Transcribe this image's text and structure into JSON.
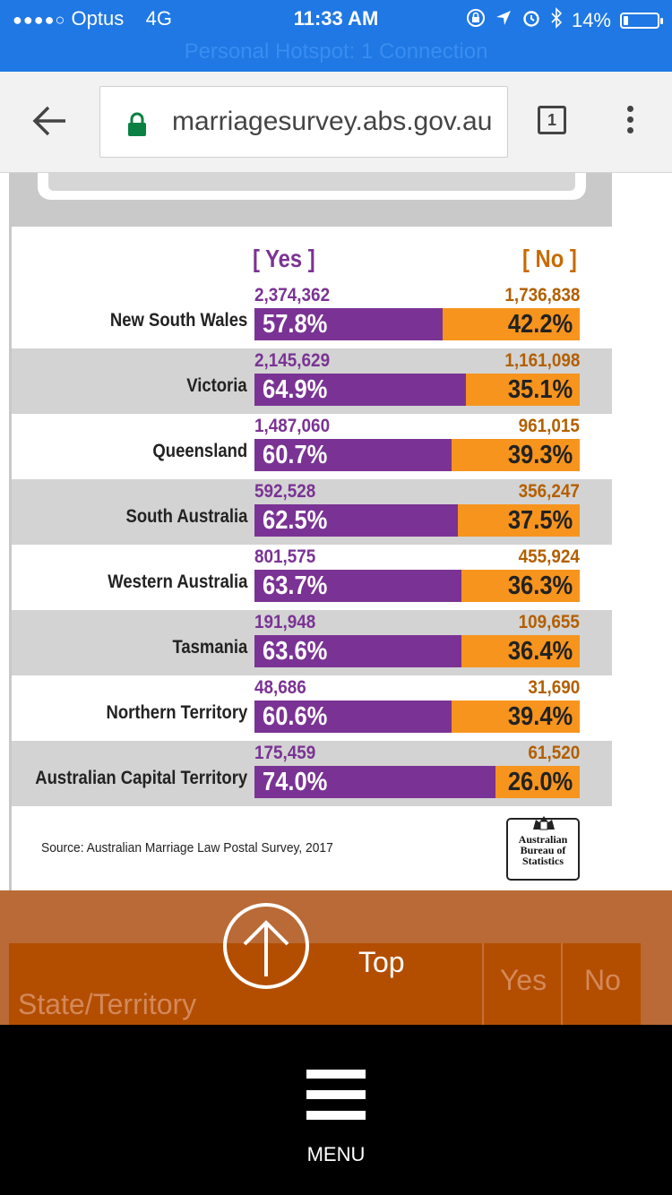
{
  "status_bar": {
    "signal": "●●●●○",
    "carrier": "Optus",
    "network": "4G",
    "time": "11:33 AM",
    "battery": "14%",
    "battery_level": 0.14,
    "hotspot": "Personal Hotspot: 1 Connection"
  },
  "browser": {
    "url": "marriagesurvey.abs.gov.au",
    "tab_count": "1"
  },
  "table": {
    "yes_header": "[ Yes ]",
    "no_header": "[ No ]",
    "rows": [
      {
        "state": "New South Wales",
        "yes_count": "2,374,362",
        "no_count": "1,736,838",
        "yes_pct": "57.8%",
        "no_pct": "42.2%",
        "yes_value": 57.8
      },
      {
        "state": "Victoria",
        "yes_count": "2,145,629",
        "no_count": "1,161,098",
        "yes_pct": "64.9%",
        "no_pct": "35.1%",
        "yes_value": 64.9
      },
      {
        "state": "Queensland",
        "yes_count": "1,487,060",
        "no_count": "961,015",
        "yes_pct": "60.7%",
        "no_pct": "39.3%",
        "yes_value": 60.7
      },
      {
        "state": "South Australia",
        "yes_count": "592,528",
        "no_count": "356,247",
        "yes_pct": "62.5%",
        "no_pct": "37.5%",
        "yes_value": 62.5
      },
      {
        "state": "Western Australia",
        "yes_count": "801,575",
        "no_count": "455,924",
        "yes_pct": "63.7%",
        "no_pct": "36.3%",
        "yes_value": 63.7
      },
      {
        "state": "Tasmania",
        "yes_count": "191,948",
        "no_count": "109,655",
        "yes_pct": "63.6%",
        "no_pct": "36.4%",
        "yes_value": 63.6
      },
      {
        "state": "Northern Territory",
        "yes_count": "48,686",
        "no_count": "31,690",
        "yes_pct": "60.6%",
        "no_pct": "39.4%",
        "yes_value": 60.6
      },
      {
        "state": "Australian Capital Territory",
        "yes_count": "175,459",
        "no_count": "61,520",
        "yes_pct": "74.0%",
        "no_pct": "26.0%",
        "yes_value": 74.0
      }
    ],
    "source": "Source: Australian Marriage Law Postal Survey, 2017",
    "logo_text": "Australian Bureau of Statistics"
  },
  "sticky_header": {
    "top_label": "Top",
    "col_state": "State/Territory",
    "col_yes": "Yes",
    "col_no": "No"
  },
  "menu": {
    "label": "MENU"
  },
  "colors": {
    "yes": "#7a3394",
    "no": "#f7941d",
    "status_bar": "#1f78e4",
    "sticky": "#b34e00"
  }
}
